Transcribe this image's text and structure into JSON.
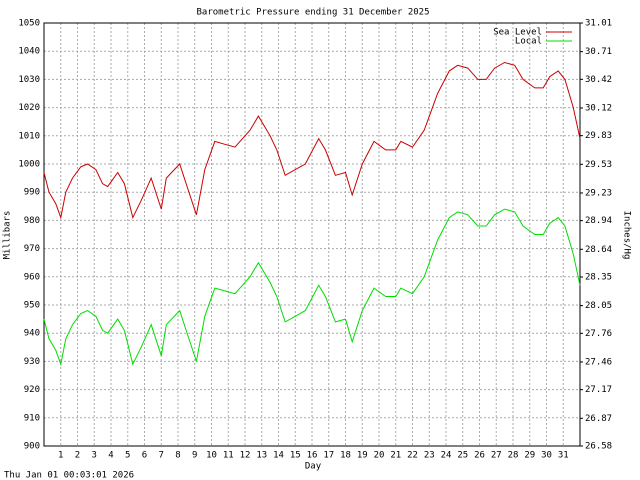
{
  "chart_data": {
    "type": "line",
    "title": "Barometric Pressure ending 31 December 2025",
    "x_label": "Day",
    "y_label": "Millibars",
    "y2_label": "Inches/Hg",
    "footer": "Thu Jan 01 00:03:01 2026",
    "legend": "upper right",
    "grid": true,
    "xlim": [
      0,
      32
    ],
    "xticks": [
      1,
      2,
      3,
      4,
      5,
      6,
      7,
      8,
      9,
      10,
      11,
      12,
      13,
      14,
      15,
      16,
      17,
      18,
      19,
      20,
      21,
      22,
      23,
      24,
      25,
      26,
      27,
      28,
      29,
      30,
      31
    ],
    "ylim": [
      900,
      1050
    ],
    "yticks": [
      900,
      910,
      920,
      930,
      940,
      950,
      960,
      970,
      980,
      990,
      1000,
      1010,
      1020,
      1030,
      1040,
      1050
    ],
    "y2lim": [
      26.58,
      31.01
    ],
    "y2ticks": [
      26.58,
      26.87,
      27.17,
      27.46,
      27.76,
      28.05,
      28.35,
      28.64,
      28.94,
      29.23,
      29.53,
      29.83,
      30.12,
      30.42,
      30.71,
      31.01
    ],
    "x": [
      0,
      0.3,
      0.7,
      1,
      1.3,
      1.7,
      2.2,
      2.6,
      3.1,
      3.5,
      3.8,
      4.4,
      4.8,
      5.3,
      5.8,
      6.4,
      7,
      7.3,
      8.1,
      8.6,
      9.1,
      9.6,
      10.2,
      10.8,
      11.4,
      12.3,
      12.8,
      13.5,
      13.9,
      14.4,
      15,
      15.6,
      16.4,
      16.8,
      17.4,
      18,
      18.4,
      19,
      19.7,
      20.4,
      21,
      21.3,
      22,
      22.7,
      23.5,
      24.2,
      24.7,
      25.3,
      25.9,
      26.4,
      26.9,
      27.5,
      28.1,
      28.6,
      29.3,
      29.8,
      30.2,
      30.7,
      31.1,
      31.6,
      32
    ],
    "series": [
      {
        "name": "Sea Level",
        "color": "#cc0000",
        "values": [
          997,
          990,
          986,
          981,
          990,
          995,
          999,
          1000,
          998,
          993,
          992,
          997,
          993,
          981,
          987,
          995,
          984,
          995,
          1000,
          991,
          982,
          998,
          1008,
          1007,
          1006,
          1012,
          1017,
          1010,
          1005,
          996,
          998,
          1000,
          1009,
          1005,
          996,
          997,
          989,
          1000,
          1008,
          1005,
          1005,
          1008,
          1006,
          1012,
          1025,
          1033,
          1035,
          1034,
          1030,
          1030,
          1034,
          1036,
          1035,
          1030,
          1027,
          1027,
          1031,
          1033,
          1030,
          1020,
          1009
        ]
      },
      {
        "name": "Local",
        "color": "#00dd00",
        "values": [
          945,
          938,
          934,
          929,
          938,
          943,
          947,
          948,
          946,
          941,
          940,
          945,
          941,
          929,
          935,
          943,
          932,
          943,
          948,
          939,
          930,
          946,
          956,
          955,
          954,
          960,
          965,
          958,
          953,
          944,
          946,
          948,
          957,
          953,
          944,
          945,
          937,
          948,
          956,
          953,
          953,
          956,
          954,
          960,
          973,
          981,
          983,
          982,
          978,
          978,
          982,
          984,
          983,
          978,
          975,
          975,
          979,
          981,
          978,
          968,
          957
        ]
      }
    ]
  }
}
